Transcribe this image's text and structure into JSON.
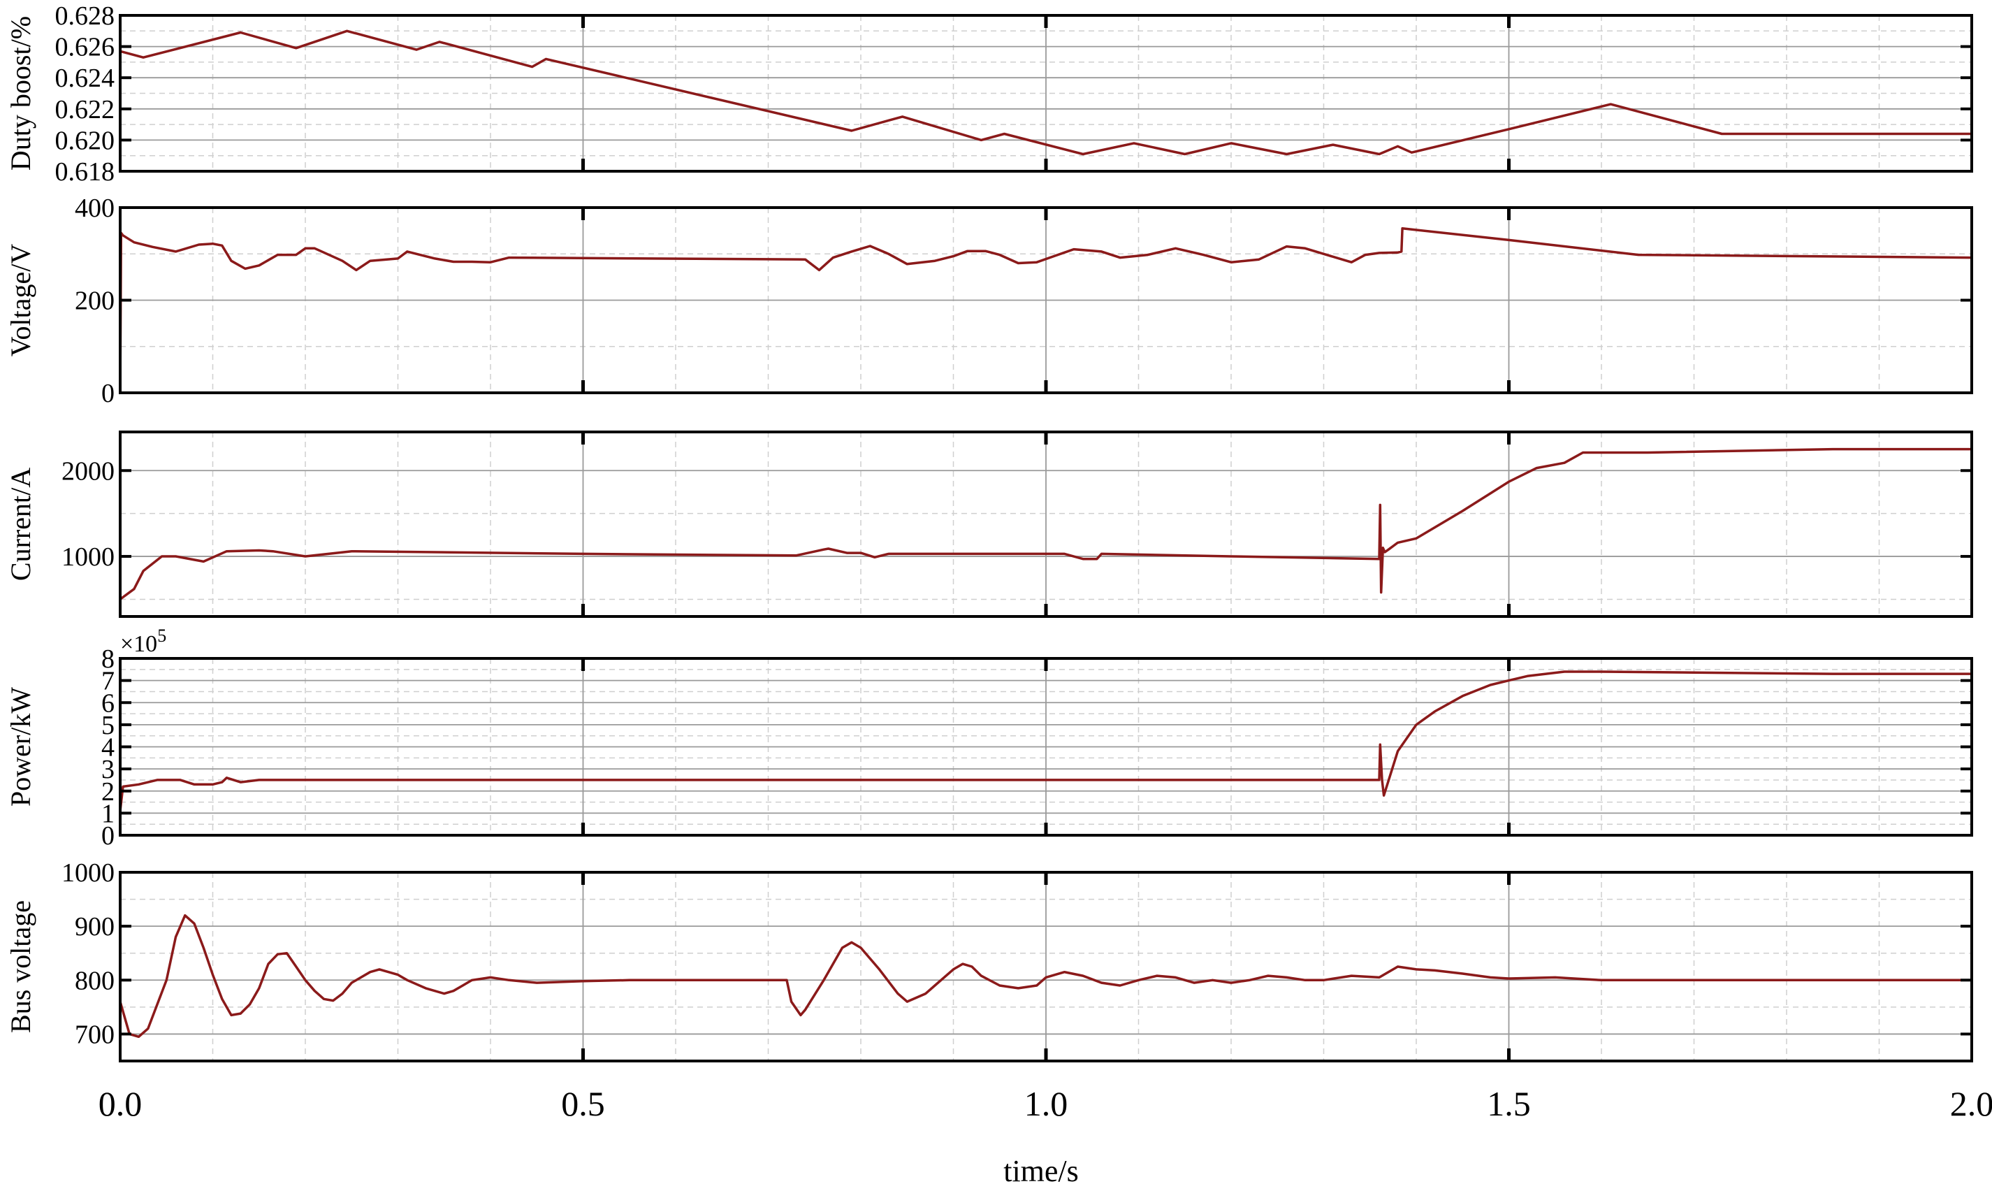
{
  "line_color": "#8b1a1a",
  "xlabel": "time/s",
  "x_ticks": [
    "0.0",
    "0.5",
    "1.0",
    "1.5",
    "2.0"
  ],
  "xlim": [
    0,
    2.0
  ],
  "chart_data": [
    {
      "type": "line",
      "ylabel": "Duty boost/%",
      "ylim": [
        0.618,
        0.628
      ],
      "yticks": [
        0.618,
        0.62,
        0.622,
        0.624,
        0.626,
        0.628
      ],
      "ytick_labels": [
        "0.618",
        "0.620",
        "0.622",
        "0.624",
        "0.626",
        "0.628"
      ],
      "minor_y": [
        0.619,
        0.621,
        0.623,
        0.625,
        0.627
      ],
      "multiplier": "",
      "grid": true,
      "x": [
        0,
        0.025,
        0.13,
        0.19,
        0.245,
        0.32,
        0.345,
        0.445,
        0.46,
        0.79,
        0.845,
        0.93,
        0.955,
        1.04,
        1.095,
        1.15,
        1.2,
        1.26,
        1.31,
        1.36,
        1.38,
        1.395,
        1.5,
        1.61,
        1.73,
        2.0
      ],
      "y": [
        0.6257,
        0.6253,
        0.6269,
        0.6259,
        0.627,
        0.6258,
        0.6263,
        0.6247,
        0.6252,
        0.6206,
        0.6215,
        0.62,
        0.6204,
        0.6191,
        0.6198,
        0.6191,
        0.6198,
        0.6191,
        0.6197,
        0.6191,
        0.6196,
        0.6192,
        0.6207,
        0.6223,
        0.6204,
        0.6204
      ]
    },
    {
      "type": "line",
      "ylabel": "Voltage/V",
      "ylim": [
        0,
        400
      ],
      "yticks": [
        0,
        200,
        400
      ],
      "ytick_labels": [
        "0",
        "200",
        "400"
      ],
      "minor_y": [
        100,
        300
      ],
      "multiplier": "",
      "grid": true,
      "x": [
        0,
        0.001,
        0.003,
        0.015,
        0.035,
        0.06,
        0.085,
        0.1,
        0.11,
        0.12,
        0.135,
        0.15,
        0.17,
        0.19,
        0.2,
        0.21,
        0.24,
        0.255,
        0.27,
        0.3,
        0.31,
        0.34,
        0.36,
        0.38,
        0.4,
        0.42,
        0.74,
        0.755,
        0.77,
        0.79,
        0.81,
        0.83,
        0.85,
        0.88,
        0.9,
        0.915,
        0.935,
        0.95,
        0.97,
        0.99,
        1.01,
        1.03,
        1.06,
        1.08,
        1.11,
        1.14,
        1.17,
        1.2,
        1.23,
        1.26,
        1.28,
        1.3,
        1.33,
        1.345,
        1.36,
        1.38,
        1.384,
        1.385,
        1.5,
        1.64,
        2.0
      ],
      "y": [
        5,
        345,
        340,
        325,
        315,
        305,
        320,
        322,
        318,
        285,
        268,
        275,
        298,
        298,
        312,
        312,
        285,
        265,
        285,
        290,
        305,
        290,
        283,
        283,
        282,
        292,
        288,
        265,
        292,
        305,
        317,
        300,
        278,
        285,
        295,
        306,
        306,
        298,
        280,
        282,
        296,
        310,
        305,
        292,
        298,
        312,
        298,
        282,
        288,
        316,
        312,
        300,
        282,
        298,
        302,
        303,
        305,
        355,
        330,
        298,
        292
      ]
    },
    {
      "type": "line",
      "ylabel": "Current/A",
      "ylim": [
        300,
        2450
      ],
      "yticks": [
        1000,
        2000
      ],
      "ytick_labels": [
        "1000",
        "2000"
      ],
      "minor_y": [
        500,
        1500
      ],
      "multiplier": "",
      "grid": true,
      "x": [
        0,
        0.015,
        0.025,
        0.045,
        0.06,
        0.09,
        0.115,
        0.15,
        0.165,
        0.2,
        0.25,
        0.5,
        0.73,
        0.76,
        0.765,
        0.785,
        0.8,
        0.815,
        0.83,
        1.02,
        1.04,
        1.055,
        1.06,
        1.2,
        1.36,
        1.361,
        1.362,
        1.364,
        1.366,
        1.37,
        1.38,
        1.4,
        1.45,
        1.5,
        1.53,
        1.56,
        1.58,
        1.65,
        1.85,
        2.0
      ],
      "y": [
        500,
        620,
        830,
        1000,
        1000,
        940,
        1060,
        1070,
        1060,
        1000,
        1060,
        1030,
        1010,
        1080,
        1090,
        1040,
        1040,
        990,
        1030,
        1030,
        970,
        970,
        1030,
        1000,
        970,
        1600,
        580,
        1100,
        1050,
        1080,
        1160,
        1210,
        1530,
        1870,
        2030,
        2090,
        2210,
        2210,
        2250,
        2250
      ]
    },
    {
      "type": "line",
      "ylabel": "Power/kW",
      "ylim": [
        0,
        8
      ],
      "yticks": [
        0,
        1,
        2,
        3,
        4,
        5,
        6,
        7,
        8
      ],
      "ytick_labels": [
        "0",
        "1",
        "2",
        "3",
        "4",
        "5",
        "6",
        "7",
        "8"
      ],
      "minor_y": [
        0.5,
        1.5,
        2.5,
        3.5,
        4.5,
        5.5,
        6.5,
        7.5
      ],
      "multiplier": "×10",
      "multiplier_exp": "5",
      "grid": true,
      "x": [
        0,
        0.003,
        0.02,
        0.04,
        0.055,
        0.065,
        0.08,
        0.1,
        0.11,
        0.115,
        0.13,
        0.15,
        0.2,
        1.36,
        1.361,
        1.363,
        1.365,
        1.38,
        1.4,
        1.42,
        1.45,
        1.48,
        1.5,
        1.52,
        1.56,
        1.6,
        1.85,
        2.0
      ],
      "y": [
        1.1,
        2.2,
        2.3,
        2.5,
        2.5,
        2.5,
        2.3,
        2.3,
        2.4,
        2.6,
        2.4,
        2.5,
        2.5,
        2.5,
        4.1,
        2.5,
        1.8,
        3.8,
        5.0,
        5.6,
        6.3,
        6.8,
        7.0,
        7.2,
        7.4,
        7.4,
        7.3,
        7.3
      ]
    },
    {
      "type": "line",
      "ylabel": "Bus voltage",
      "ylim": [
        650,
        1000
      ],
      "yticks": [
        700,
        800,
        900,
        1000
      ],
      "ytick_labels": [
        "700",
        "800",
        "900",
        "1000"
      ],
      "minor_y": [
        750,
        850,
        950
      ],
      "multiplier": "",
      "grid": true,
      "x": [
        0,
        0.01,
        0.02,
        0.03,
        0.05,
        0.06,
        0.07,
        0.08,
        0.09,
        0.1,
        0.11,
        0.12,
        0.13,
        0.14,
        0.15,
        0.16,
        0.17,
        0.18,
        0.19,
        0.2,
        0.21,
        0.22,
        0.23,
        0.24,
        0.25,
        0.27,
        0.28,
        0.3,
        0.31,
        0.33,
        0.35,
        0.36,
        0.37,
        0.38,
        0.4,
        0.42,
        0.45,
        0.5,
        0.55,
        0.6,
        0.65,
        0.7,
        0.72,
        0.725,
        0.735,
        0.74,
        0.76,
        0.78,
        0.79,
        0.8,
        0.82,
        0.84,
        0.85,
        0.87,
        0.88,
        0.9,
        0.91,
        0.92,
        0.93,
        0.95,
        0.97,
        0.99,
        1.0,
        1.02,
        1.04,
        1.06,
        1.08,
        1.1,
        1.12,
        1.14,
        1.16,
        1.18,
        1.2,
        1.22,
        1.24,
        1.26,
        1.28,
        1.3,
        1.33,
        1.36,
        1.38,
        1.4,
        1.42,
        1.45,
        1.48,
        1.5,
        1.55,
        1.6,
        1.7,
        1.8,
        1.9,
        2.0
      ],
      "y": [
        760,
        700,
        695,
        710,
        800,
        880,
        920,
        905,
        860,
        810,
        765,
        735,
        738,
        755,
        785,
        830,
        848,
        850,
        825,
        800,
        780,
        765,
        762,
        775,
        795,
        815,
        820,
        810,
        800,
        785,
        775,
        780,
        790,
        800,
        805,
        800,
        795,
        798,
        800,
        800,
        800,
        800,
        800,
        760,
        735,
        745,
        800,
        860,
        870,
        860,
        820,
        775,
        760,
        775,
        790,
        820,
        830,
        825,
        808,
        790,
        785,
        790,
        805,
        815,
        808,
        795,
        790,
        800,
        808,
        805,
        795,
        800,
        795,
        800,
        808,
        805,
        800,
        800,
        808,
        805,
        825,
        820,
        818,
        812,
        805,
        803,
        805,
        800,
        800,
        800,
        800,
        800
      ]
    }
  ]
}
